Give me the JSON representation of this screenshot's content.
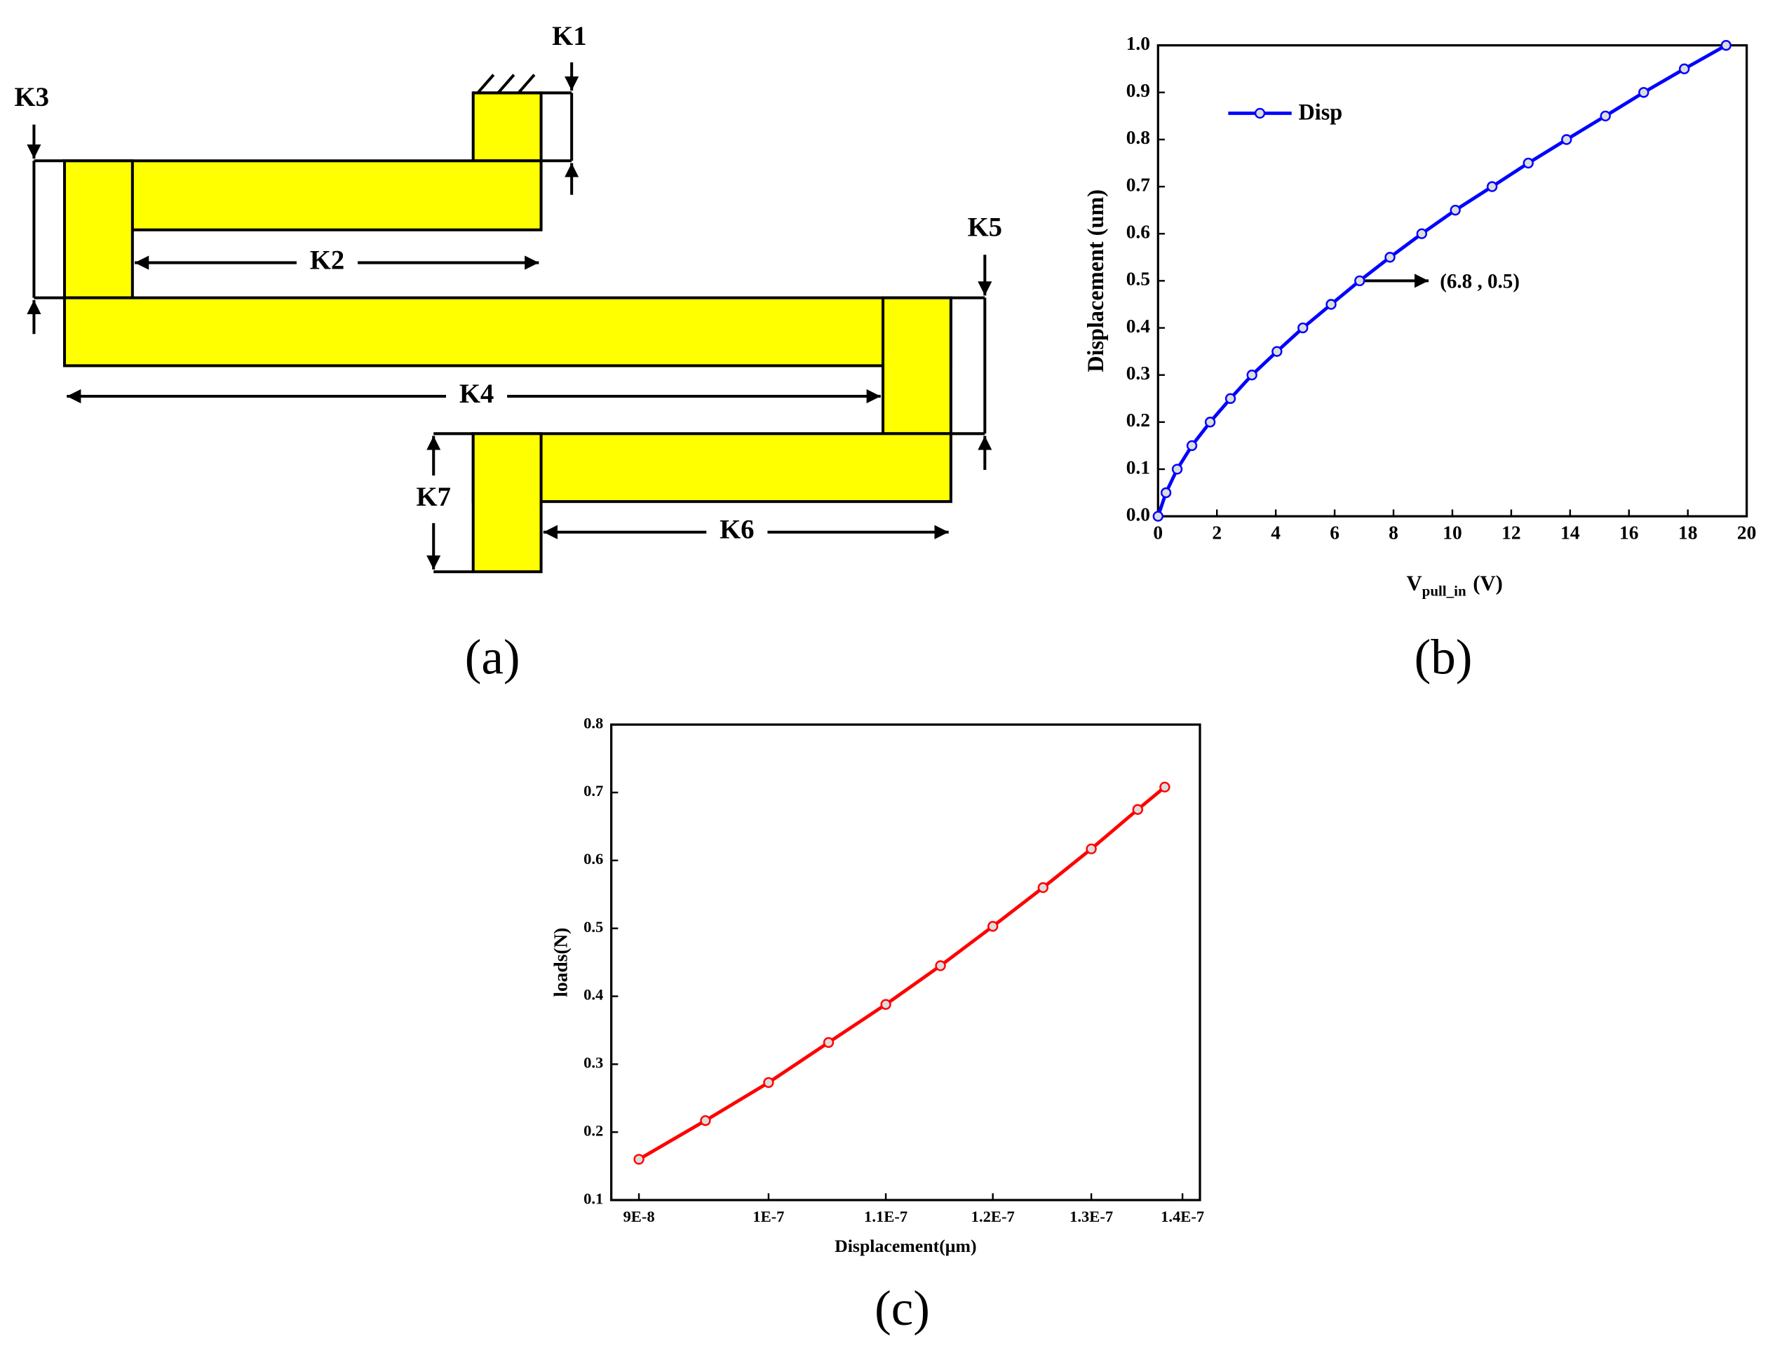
{
  "diagram": {
    "labels": [
      "K1",
      "K2",
      "K3",
      "K4",
      "K5",
      "K6",
      "K7"
    ],
    "caption": "(a)"
  },
  "chart_data": [
    {
      "type": "line",
      "caption": "(b)",
      "ylabel": "Displacement (um)",
      "xlabel": "V",
      "xlabel_subscript": "pull_in",
      "xlabel_suffix": "(V)",
      "annotation": "(6.8 , 0.5)",
      "legend": "upper left",
      "xscale": "linear",
      "x": [
        0,
        0.27,
        0.65,
        1.15,
        1.77,
        2.46,
        3.19,
        4.04,
        4.92,
        5.88,
        6.85,
        7.88,
        8.96,
        10.1,
        11.35,
        12.58,
        13.88,
        15.2,
        16.5,
        17.88,
        19.3
      ],
      "series": [
        {
          "name": "Disp",
          "color": "#0000ff",
          "values": [
            0,
            0.05,
            0.1,
            0.15,
            0.2,
            0.25,
            0.3,
            0.35,
            0.4,
            0.45,
            0.5,
            0.55,
            0.6,
            0.65,
            0.7,
            0.75,
            0.8,
            0.85,
            0.9,
            0.95,
            1.0
          ]
        }
      ],
      "xlim": [
        0,
        20
      ],
      "xticks": [
        0,
        2,
        4,
        6,
        8,
        10,
        12,
        14,
        16,
        18,
        20
      ],
      "ylim": [
        0,
        1.0
      ],
      "yticks": [
        {
          "value": 0,
          "label": "0.0"
        },
        0.1,
        0.2,
        0.3,
        0.4,
        0.5,
        0.6,
        0.7,
        0.8,
        0.9,
        {
          "value": 1.0,
          "label": "1.0"
        }
      ]
    },
    {
      "type": "line",
      "caption": "(c)",
      "ylabel": "loads(N)",
      "xlabel": "Displacement(μm)",
      "xscale": "log",
      "x": [
        9e-08,
        9.5e-08,
        1e-07,
        1.05e-07,
        1.1e-07,
        1.15e-07,
        1.2e-07,
        1.25e-07,
        1.3e-07,
        1.35e-07,
        1.38e-07
      ],
      "series": [
        {
          "color": "#ff0000",
          "values": [
            0.16,
            0.217,
            0.273,
            0.332,
            0.388,
            0.445,
            0.503,
            0.56,
            0.617,
            0.675,
            0.708
          ]
        }
      ],
      "xlim": [
        8.8e-08,
        1.42e-07
      ],
      "xticks": [
        {
          "value": 9e-08,
          "label": "9E-8"
        },
        {
          "value": 1e-07,
          "label": "1E-7"
        },
        {
          "value": 1.1e-07,
          "label": "1.1E-7"
        },
        {
          "value": 1.2e-07,
          "label": "1.2E-7"
        },
        {
          "value": 1.3e-07,
          "label": "1.3E-7"
        },
        {
          "value": 1.4e-07,
          "label": "1.4E-7"
        }
      ],
      "ylim": [
        0.1,
        0.8
      ],
      "yticks": [
        0.1,
        0.2,
        0.3,
        0.4,
        0.5,
        0.6,
        0.7,
        0.8
      ]
    }
  ]
}
